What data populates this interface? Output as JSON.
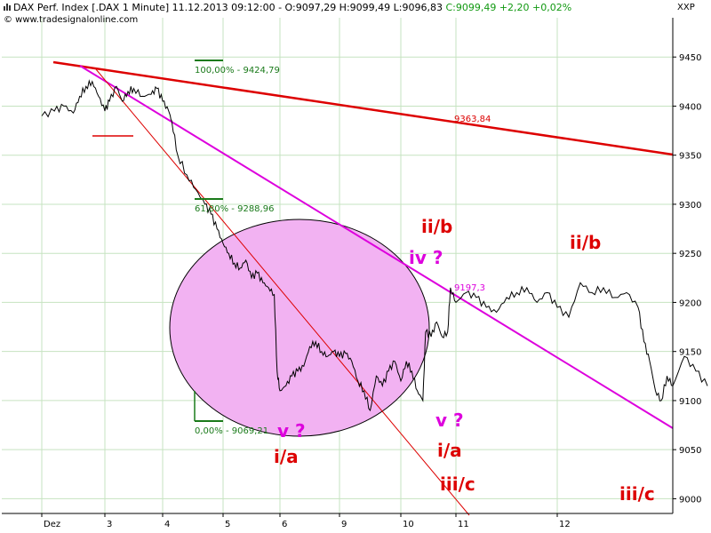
{
  "header": {
    "title_text": "DAX Perf. Index [.DAX  1 Minute] 11.12.2013 09:12:00 - O:9097,29 H:9099,49 L:9096,83",
    "change_text": "C:9099,49 +2,20 +0,02%",
    "source_text": "© www.tradesignalonline.com",
    "unit_text": "XXP"
  },
  "colors": {
    "price": "#000000",
    "grid": "#c6e3c0",
    "fib": "#1a7a1a",
    "red": "#dd0000",
    "magenta": "#dd00dd",
    "ellipse_fill": "#f2b2f2"
  },
  "chart_data": {
    "type": "line",
    "ylim": [
      8985,
      9490
    ],
    "x_tick_labels": [
      "Dez",
      "3",
      "4",
      "5",
      "6",
      "9",
      "10",
      "11",
      "12"
    ],
    "y_tick_labels": [
      "9450",
      "9400",
      "9350",
      "9300",
      "9250",
      "9200",
      "9150",
      "9100",
      "9050",
      "9000"
    ],
    "y_ticks": [
      9450,
      9400,
      9350,
      9300,
      9250,
      9200,
      9150,
      9100,
      9050,
      9000
    ],
    "series": [
      {
        "values": [
          [
            0.0,
            9390
          ],
          [
            0.2,
            9395
          ],
          [
            0.35,
            9400
          ],
          [
            0.5,
            9393
          ],
          [
            0.6,
            9410
          ],
          [
            0.7,
            9420
          ],
          [
            0.8,
            9425
          ],
          [
            0.9,
            9410
          ],
          [
            1.0,
            9395
          ],
          [
            1.08,
            9405
          ],
          [
            1.2,
            9420
          ],
          [
            1.3,
            9405
          ],
          [
            1.4,
            9415
          ],
          [
            1.5,
            9418
          ],
          [
            1.65,
            9410
          ],
          [
            1.8,
            9412
          ],
          [
            1.9,
            9418
          ],
          [
            2.0,
            9405
          ],
          [
            2.1,
            9395
          ],
          [
            2.15,
            9385
          ],
          [
            2.25,
            9350
          ],
          [
            2.4,
            9330
          ],
          [
            2.55,
            9315
          ],
          [
            2.7,
            9300
          ],
          [
            2.8,
            9290
          ],
          [
            2.9,
            9275
          ],
          [
            3.0,
            9260
          ],
          [
            3.1,
            9250
          ],
          [
            3.2,
            9240
          ],
          [
            3.3,
            9235
          ],
          [
            3.4,
            9243
          ],
          [
            3.5,
            9225
          ],
          [
            3.6,
            9230
          ],
          [
            3.7,
            9220
          ],
          [
            3.8,
            9215
          ],
          [
            3.9,
            9208
          ],
          [
            3.95,
            9130
          ],
          [
            4.0,
            9110
          ],
          [
            4.1,
            9115
          ],
          [
            4.2,
            9125
          ],
          [
            4.3,
            9130
          ],
          [
            4.4,
            9135
          ],
          [
            4.5,
            9155
          ],
          [
            4.6,
            9160
          ],
          [
            4.7,
            9150
          ],
          [
            4.8,
            9145
          ],
          [
            4.9,
            9150
          ],
          [
            5.0,
            9145
          ],
          [
            5.1,
            9148
          ],
          [
            5.2,
            9140
          ],
          [
            5.3,
            9120
          ],
          [
            5.4,
            9110
          ],
          [
            5.5,
            9090
          ],
          [
            5.6,
            9125
          ],
          [
            5.7,
            9115
          ],
          [
            5.8,
            9130
          ],
          [
            5.9,
            9140
          ],
          [
            6.0,
            9120
          ],
          [
            6.1,
            9140
          ],
          [
            6.2,
            9130
          ],
          [
            6.3,
            9110
          ],
          [
            6.4,
            9100
          ],
          [
            6.45,
            9170
          ],
          [
            6.55,
            9165
          ],
          [
            6.65,
            9180
          ],
          [
            6.75,
            9165
          ],
          [
            6.85,
            9170
          ],
          [
            6.9,
            9215
          ],
          [
            7.0,
            9200
          ],
          [
            7.1,
            9210
          ],
          [
            7.2,
            9205
          ],
          [
            7.3,
            9195
          ],
          [
            7.4,
            9190
          ],
          [
            7.5,
            9205
          ],
          [
            7.6,
            9210
          ],
          [
            7.7,
            9215
          ],
          [
            7.8,
            9200
          ],
          [
            7.9,
            9210
          ],
          [
            8.0,
            9195
          ],
          [
            8.1,
            9185
          ],
          [
            8.2,
            9220
          ],
          [
            8.3,
            9210
          ],
          [
            8.4,
            9215
          ],
          [
            8.5,
            9205
          ],
          [
            8.6,
            9210
          ],
          [
            8.7,
            9195
          ],
          [
            8.75,
            9160
          ],
          [
            8.8,
            9140
          ],
          [
            8.85,
            9110
          ],
          [
            8.9,
            9100
          ],
          [
            8.95,
            9125
          ],
          [
            9.0,
            9115
          ],
          [
            9.1,
            9145
          ],
          [
            9.2,
            9130
          ],
          [
            9.3,
            9115
          ]
        ]
      }
    ],
    "annotations": {
      "fib_levels": [
        {
          "label": "100,00% - 9424,79",
          "value": 9424.79
        },
        {
          "label": "61,80% - 9288,96",
          "value": 9288.96
        },
        {
          "label": "0,00% - 9069,21",
          "value": 9069.21
        }
      ],
      "price_labels": [
        {
          "label": "9363,84",
          "color": "red"
        },
        {
          "label": "9197,3",
          "color": "magenta"
        }
      ],
      "wave_labels": [
        {
          "label": "ii/b",
          "color": "red"
        },
        {
          "label": "ii/b",
          "color": "red"
        },
        {
          "label": "iv ?",
          "color": "magenta"
        },
        {
          "label": "v ?",
          "color": "magenta"
        },
        {
          "label": "v ?",
          "color": "magenta"
        },
        {
          "label": "i/a",
          "color": "red"
        },
        {
          "label": "i/a",
          "color": "red"
        },
        {
          "label": "iii/c",
          "color": "red"
        },
        {
          "label": "iii/c",
          "color": "red"
        }
      ]
    }
  }
}
